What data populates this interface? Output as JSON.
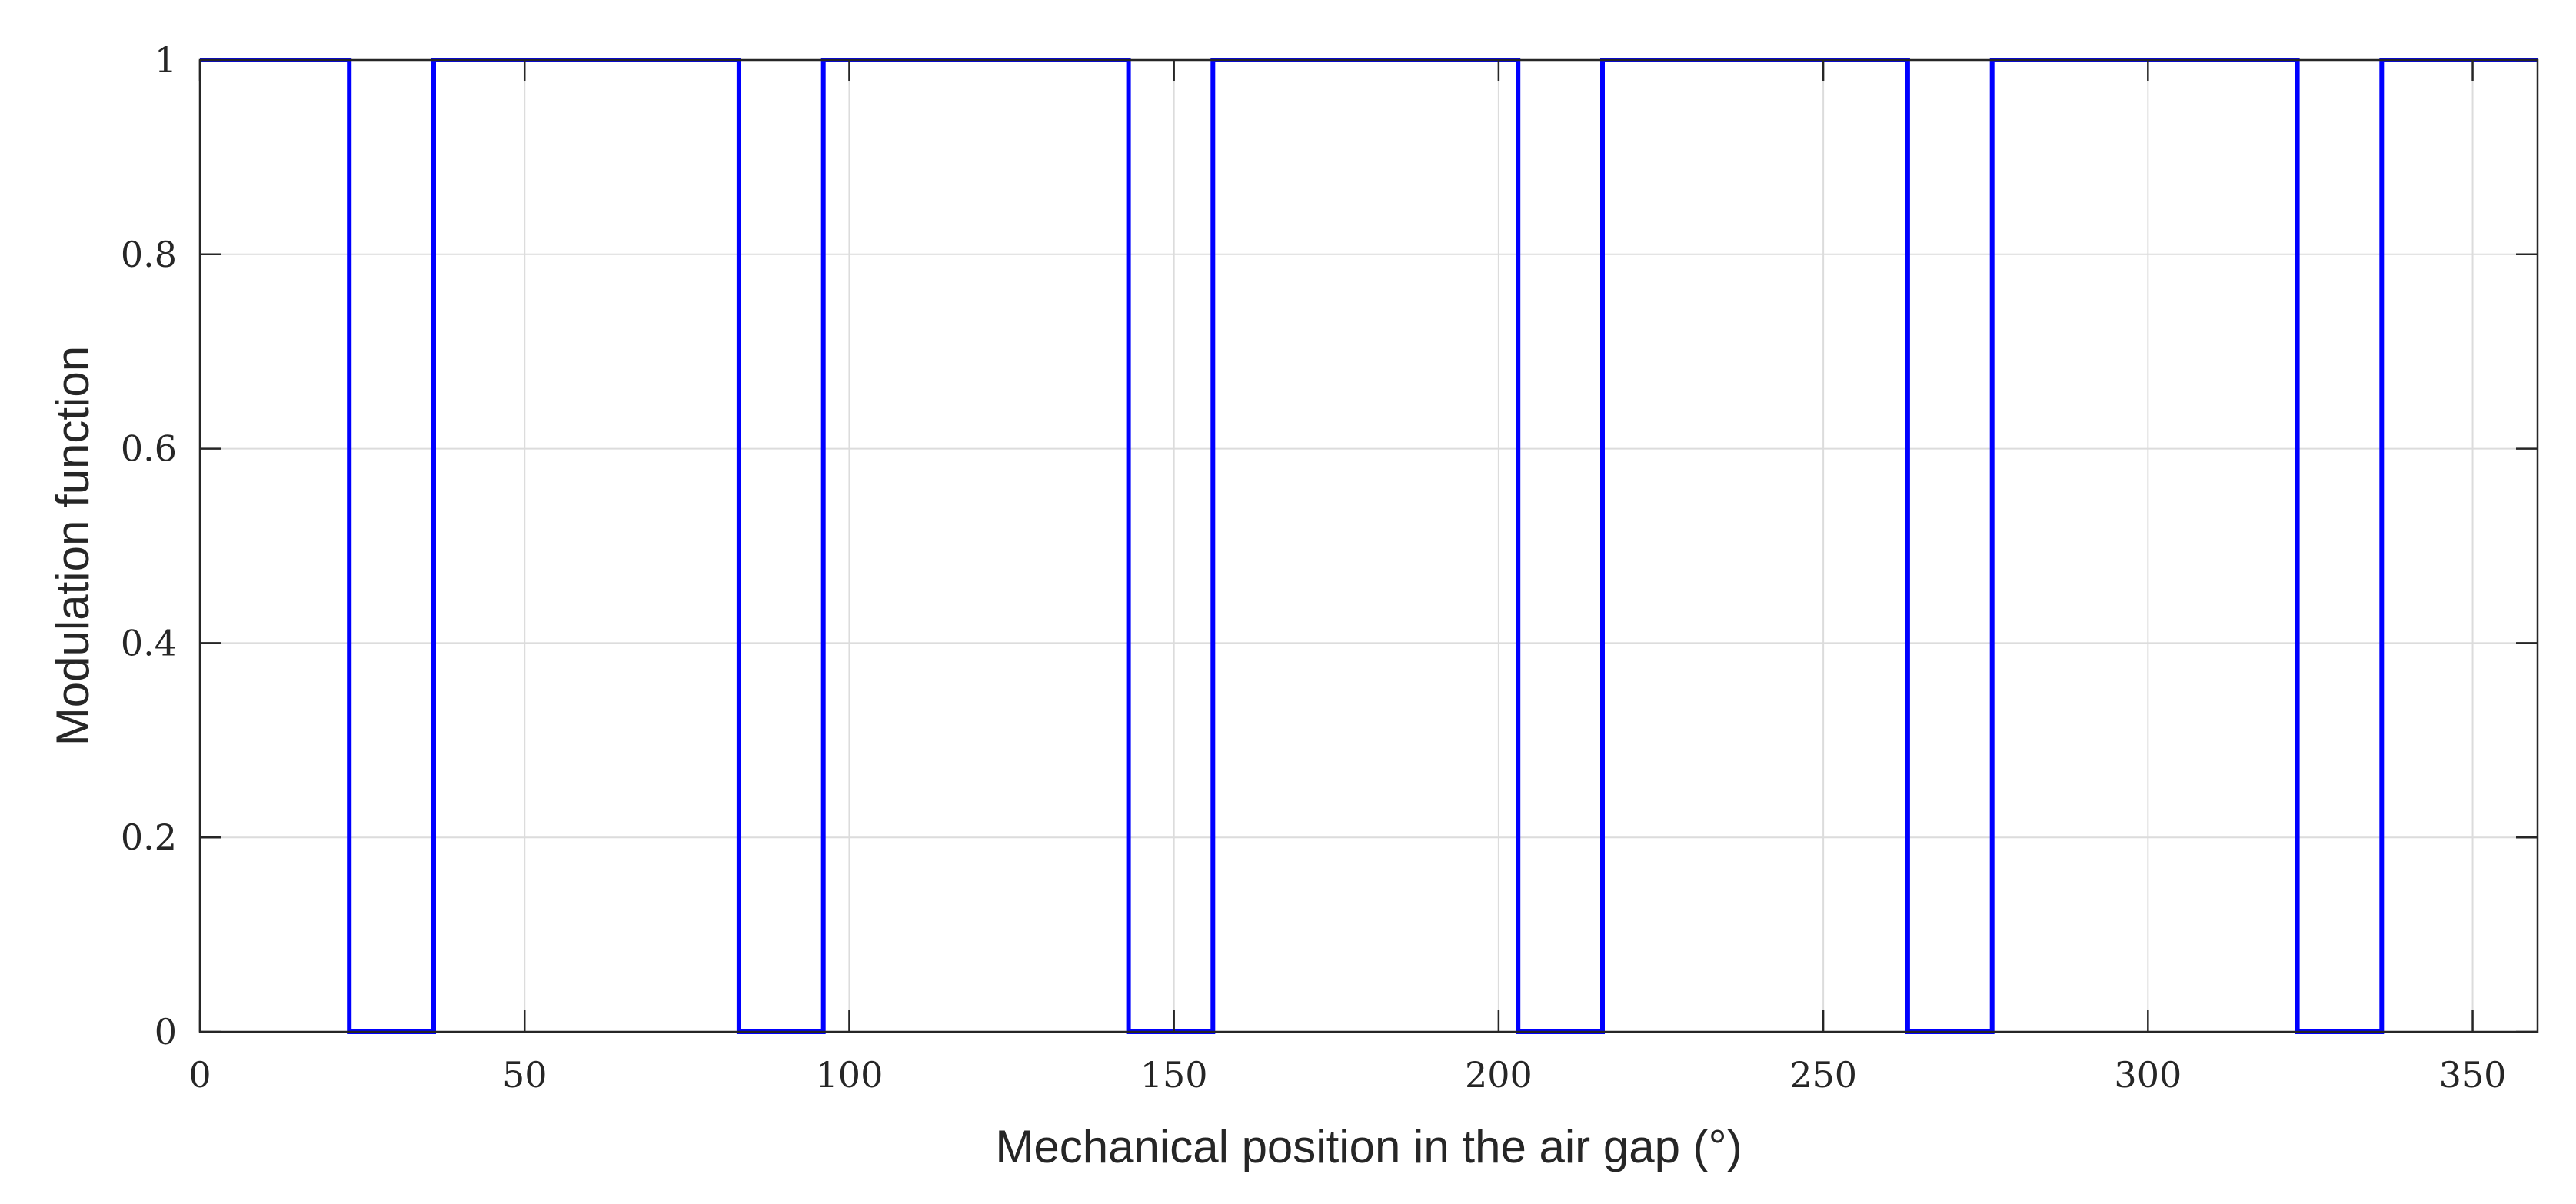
{
  "chart_data": {
    "type": "line",
    "xlabel": "Mechanical position in the air gap (°)",
    "ylabel": "Modulation function",
    "xlim": [
      0,
      360
    ],
    "ylim": [
      0,
      1
    ],
    "xticks": [
      0,
      50,
      100,
      150,
      200,
      250,
      300,
      350
    ],
    "xtick_labels": [
      "0",
      "50",
      "100",
      "150",
      "200",
      "250",
      "300",
      "350"
    ],
    "yticks": [
      0,
      0.2,
      0.4,
      0.6,
      0.8,
      1
    ],
    "ytick_labels": [
      "0",
      "0.2",
      "0.4",
      "0.6",
      "0.8",
      "1"
    ],
    "grid": true,
    "series": [
      {
        "color": "#0000ff",
        "x": [
          0,
          23,
          23,
          36,
          36,
          83,
          83,
          96,
          96,
          143,
          143,
          156,
          156,
          203,
          203,
          216,
          216,
          263,
          263,
          276,
          276,
          323,
          323,
          336,
          336,
          360
        ],
        "y": [
          1,
          1,
          0,
          0,
          1,
          1,
          0,
          0,
          1,
          1,
          0,
          0,
          1,
          1,
          0,
          0,
          1,
          1,
          0,
          0,
          1,
          1,
          0,
          0,
          1,
          1
        ]
      }
    ]
  }
}
